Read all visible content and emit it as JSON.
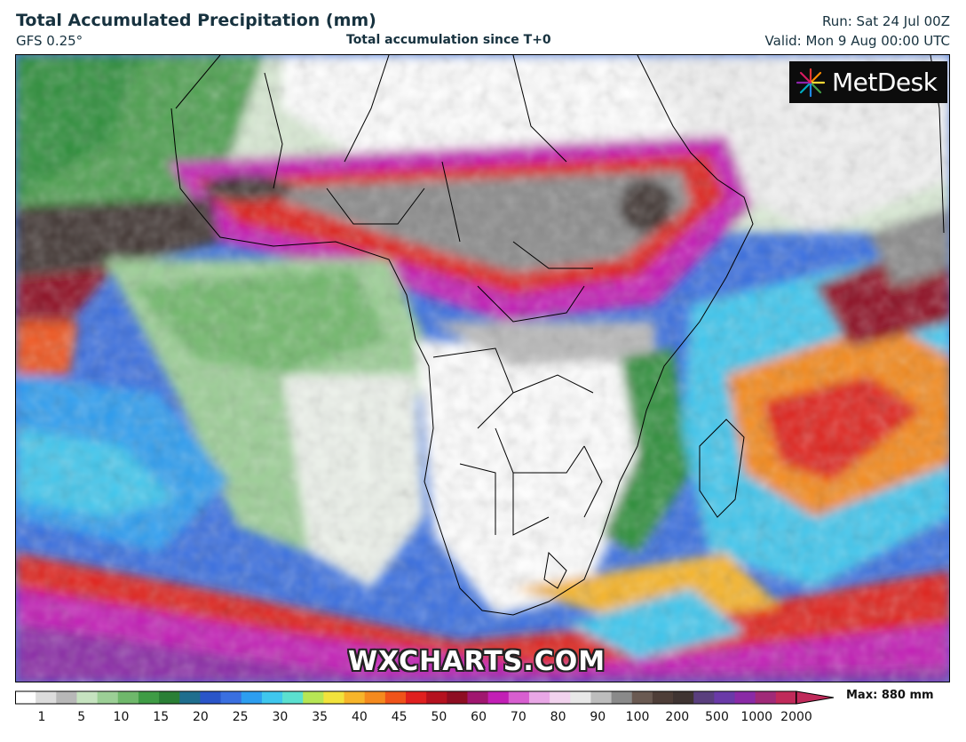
{
  "header": {
    "title": "Total Accumulated Precipitation (mm)",
    "model": "GFS 0.25°",
    "subtitle": "Total accumulation since T+0",
    "run": "Run: Sat 24 Jul 00Z",
    "valid": "Valid: Mon 9 Aug 00:00 UTC"
  },
  "logo": {
    "text": "MetDesk",
    "icon": "metdesk-burst-icon"
  },
  "watermark": "WXCHARTS.COM",
  "map": {
    "region": "Africa and surrounding oceans",
    "field": "accumulated precipitation",
    "colors": {
      "land_dry": "#ffffff",
      "light_green": "#9ccf96",
      "dark_green": "#2f8f3a",
      "blue": "#3a6fe0",
      "cyan": "#3fc7ee",
      "yellow": "#f2e33c",
      "orange": "#f58a1e",
      "red": "#e0201f",
      "dark_red": "#8e0e22",
      "magenta": "#c21fb5",
      "violet": "#8a2aa6",
      "gray": "#8a8a8a",
      "dark_brown": "#3f3432",
      "borders": "#000000"
    }
  },
  "colorbar": {
    "unit": "mm",
    "tick_labels": [
      "1",
      "5",
      "10",
      "15",
      "20",
      "25",
      "30",
      "35",
      "40",
      "45",
      "50",
      "60",
      "70",
      "80",
      "90",
      "100",
      "200",
      "500",
      "1000",
      "2000"
    ],
    "max_label": "Max: 880 mm",
    "stops": [
      "#ffffff",
      "#dcdcdc",
      "#b8b8b8",
      "#c6e3c0",
      "#9ccf96",
      "#6fb86b",
      "#3f9c45",
      "#2a7f35",
      "#1f6e8e",
      "#2a55c9",
      "#3a6fe0",
      "#2d9ef0",
      "#3fc7ee",
      "#5be0d0",
      "#b7e655",
      "#f2e33c",
      "#f7b52a",
      "#f58a1e",
      "#f0531a",
      "#e0201f",
      "#b5121f",
      "#8e0e22",
      "#a0176f",
      "#c21fb5",
      "#d85fd0",
      "#e9a7e6",
      "#f2d3ee",
      "#e8e8e8",
      "#bdbdbd",
      "#8a8a8a",
      "#6a5a52",
      "#4e3e38",
      "#3f3432",
      "#5a3f7e",
      "#6a3aa8",
      "#8a2aa6",
      "#a02a78",
      "#c02a5a"
    ]
  }
}
